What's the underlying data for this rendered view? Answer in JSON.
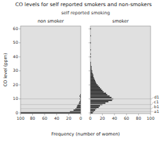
{
  "chart_data": {
    "type": "bar",
    "orientation": "horizontal",
    "title": "CO levels for self reported smokers and non-smokers",
    "subtitle": "self reported smoking",
    "xlabel": "Frequency (number of women)",
    "ylabel": "CO level (ppm)",
    "xlim": [
      0,
      100
    ],
    "xticks": [
      0,
      20,
      40,
      60,
      80,
      100
    ],
    "ylim": [
      -0.5,
      62
    ],
    "yticks": [
      0,
      10,
      20,
      30,
      40,
      50,
      60
    ],
    "series": [
      {
        "name": "non smoker",
        "color": "#111111",
        "x": [
          0,
          1,
          2,
          3,
          4,
          5,
          6,
          7,
          8,
          9,
          10,
          11,
          12,
          13
        ],
        "values": [
          100,
          18,
          12,
          9,
          7,
          6,
          5,
          3,
          2,
          1,
          2,
          1,
          2,
          1
        ]
      },
      {
        "name": "smoker",
        "color": "#111111",
        "x": [
          0,
          1,
          2,
          3,
          4,
          5,
          6,
          7,
          8,
          9,
          10,
          11,
          12,
          13,
          14,
          15,
          16,
          17,
          18,
          19,
          20,
          21,
          22,
          23,
          24,
          25,
          26,
          27,
          28,
          29,
          30,
          31,
          32,
          33,
          34,
          35,
          36,
          40,
          42,
          45,
          50,
          55,
          60
        ],
        "values": [
          4,
          6,
          8,
          10,
          14,
          16,
          20,
          25,
          30,
          36,
          38,
          35,
          32,
          28,
          26,
          22,
          20,
          18,
          16,
          14,
          12,
          10,
          9,
          8,
          7,
          6,
          5,
          5,
          4,
          3,
          3,
          2,
          2,
          2,
          1,
          1,
          1,
          1,
          1,
          1,
          1,
          1,
          1
        ]
      }
    ],
    "annotations": [
      {
        "text": "d1",
        "y": 10
      },
      {
        "text": "c1",
        "y": 6
      },
      {
        "text": "b1",
        "y": 3
      },
      {
        "text": "a1",
        "y": 1
      }
    ]
  }
}
